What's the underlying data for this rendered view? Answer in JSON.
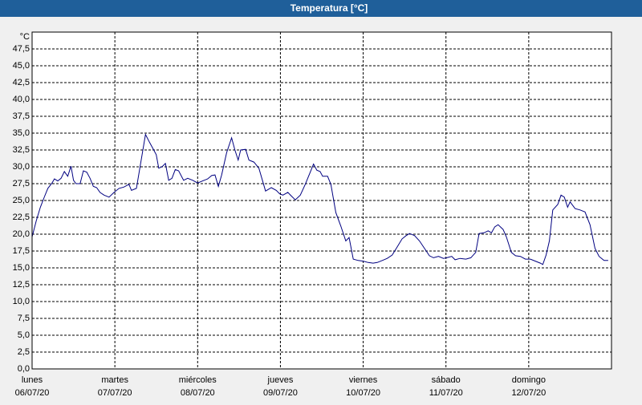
{
  "chart_data": {
    "type": "line",
    "title": "Temperatura [°C]",
    "y_unit": "°C",
    "xlim": [
      0,
      7
    ],
    "ylim": [
      0,
      50
    ],
    "grid": true,
    "xticks": [
      {
        "value": 0,
        "label": "lunes",
        "date": "06/07/20"
      },
      {
        "value": 1,
        "label": "martes",
        "date": "07/07/20"
      },
      {
        "value": 2,
        "label": "miércoles",
        "date": "08/07/20"
      },
      {
        "value": 3,
        "label": "jueves",
        "date": "09/07/20"
      },
      {
        "value": 4,
        "label": "viernes",
        "date": "10/07/20"
      },
      {
        "value": 5,
        "label": "sábado",
        "date": "11/07/20"
      },
      {
        "value": 6,
        "label": "domingo",
        "date": "12/07/20"
      }
    ],
    "yticks": [
      {
        "value": 0,
        "label": "0,0"
      },
      {
        "value": 2.5,
        "label": "2,5"
      },
      {
        "value": 5,
        "label": "5,0"
      },
      {
        "value": 7.5,
        "label": "7,5"
      },
      {
        "value": 10,
        "label": "10,0"
      },
      {
        "value": 12.5,
        "label": "12,5"
      },
      {
        "value": 15,
        "label": "15,0"
      },
      {
        "value": 17.5,
        "label": "17,5"
      },
      {
        "value": 20,
        "label": "20,0"
      },
      {
        "value": 22.5,
        "label": "22,5"
      },
      {
        "value": 25,
        "label": "25,0"
      },
      {
        "value": 27.5,
        "label": "27,5"
      },
      {
        "value": 30,
        "label": "30,0"
      },
      {
        "value": 32.5,
        "label": "32,5"
      },
      {
        "value": 35,
        "label": "35,0"
      },
      {
        "value": 37.5,
        "label": "37,5"
      },
      {
        "value": 40,
        "label": "40,0"
      },
      {
        "value": 42.5,
        "label": "42,5"
      },
      {
        "value": 45,
        "label": "45,0"
      },
      {
        "value": 47.5,
        "label": "47,5"
      }
    ],
    "x": [
      0,
      0.05,
      0.1,
      0.15,
      0.19,
      0.24,
      0.27,
      0.31,
      0.35,
      0.39,
      0.43,
      0.47,
      0.5,
      0.53,
      0.58,
      0.62,
      0.66,
      0.7,
      0.74,
      0.78,
      0.82,
      0.87,
      0.93,
      0.99,
      1.05,
      1.11,
      1.17,
      1.2,
      1.26,
      1.31,
      1.37,
      1.42,
      1.46,
      1.5,
      1.53,
      1.57,
      1.61,
      1.65,
      1.69,
      1.73,
      1.77,
      1.83,
      1.88,
      1.94,
      2.0,
      2.06,
      2.12,
      2.17,
      2.21,
      2.25,
      2.29,
      2.35,
      2.41,
      2.45,
      2.49,
      2.52,
      2.58,
      2.62,
      2.68,
      2.74,
      2.82,
      2.89,
      2.95,
      2.99,
      3.03,
      3.09,
      3.13,
      3.18,
      3.24,
      3.3,
      3.36,
      3.4,
      3.44,
      3.48,
      3.51,
      3.57,
      3.61,
      3.67,
      3.73,
      3.79,
      3.83,
      3.88,
      3.94,
      4.0,
      4.06,
      4.12,
      4.17,
      4.23,
      4.29,
      4.35,
      4.41,
      4.47,
      4.52,
      4.56,
      4.62,
      4.68,
      4.74,
      4.8,
      4.85,
      4.91,
      4.97,
      5.01,
      5.07,
      5.11,
      5.17,
      5.24,
      5.3,
      5.36,
      5.4,
      5.46,
      5.51,
      5.55,
      5.59,
      5.63,
      5.69,
      5.73,
      5.79,
      5.84,
      5.9,
      5.96,
      6.02,
      6.08,
      6.14,
      6.17,
      6.21,
      6.25,
      6.29,
      6.35,
      6.39,
      6.43,
      6.47,
      6.5,
      6.56,
      6.62,
      6.68,
      6.74,
      6.8,
      6.85,
      6.91,
      6.96
    ],
    "series": [
      {
        "name": "Temperatura",
        "color": "#000080",
        "values": [
          19.6,
          22,
          24,
          25.6,
          26.8,
          27.6,
          28.2,
          27.9,
          28.3,
          29.3,
          28.6,
          30.1,
          28,
          27.5,
          27.5,
          29.4,
          29.2,
          28.3,
          27.1,
          26.9,
          26.2,
          25.8,
          25.5,
          26.2,
          26.8,
          27,
          27.4,
          26.5,
          26.8,
          30.4,
          34.8,
          33.6,
          32.7,
          31.8,
          29.8,
          30,
          30.5,
          28,
          28.3,
          29.6,
          29.4,
          28,
          28.3,
          28,
          27.6,
          27.9,
          28.2,
          28.7,
          28.8,
          27.1,
          28.8,
          32.1,
          34.3,
          32.5,
          31,
          32.5,
          32.6,
          31,
          30.7,
          29.8,
          26.4,
          26.9,
          26.5,
          26,
          25.8,
          26.2,
          25.7,
          25.1,
          25.8,
          27.4,
          29.2,
          30.4,
          29.5,
          29.3,
          28.6,
          28.6,
          27.4,
          23.2,
          21.2,
          19,
          19.5,
          16.3,
          16.1,
          16,
          15.8,
          15.7,
          15.8,
          16.1,
          16.4,
          16.9,
          18.1,
          19.3,
          19.8,
          20.1,
          19.8,
          19,
          17.9,
          16.8,
          16.5,
          16.7,
          16.4,
          16.5,
          16.7,
          16.2,
          16.4,
          16.3,
          16.5,
          17.3,
          20.1,
          20.2,
          20.5,
          20.2,
          21.1,
          21.4,
          20.7,
          19.6,
          17.3,
          16.8,
          16.7,
          16.3,
          16.3,
          16,
          15.7,
          15.5,
          16.9,
          19,
          23.6,
          24.4,
          25.8,
          25.5,
          24,
          24.8,
          23.8,
          23.6,
          23.3,
          21.4,
          17.9,
          16.7,
          16.1,
          16.1
        ]
      }
    ]
  }
}
